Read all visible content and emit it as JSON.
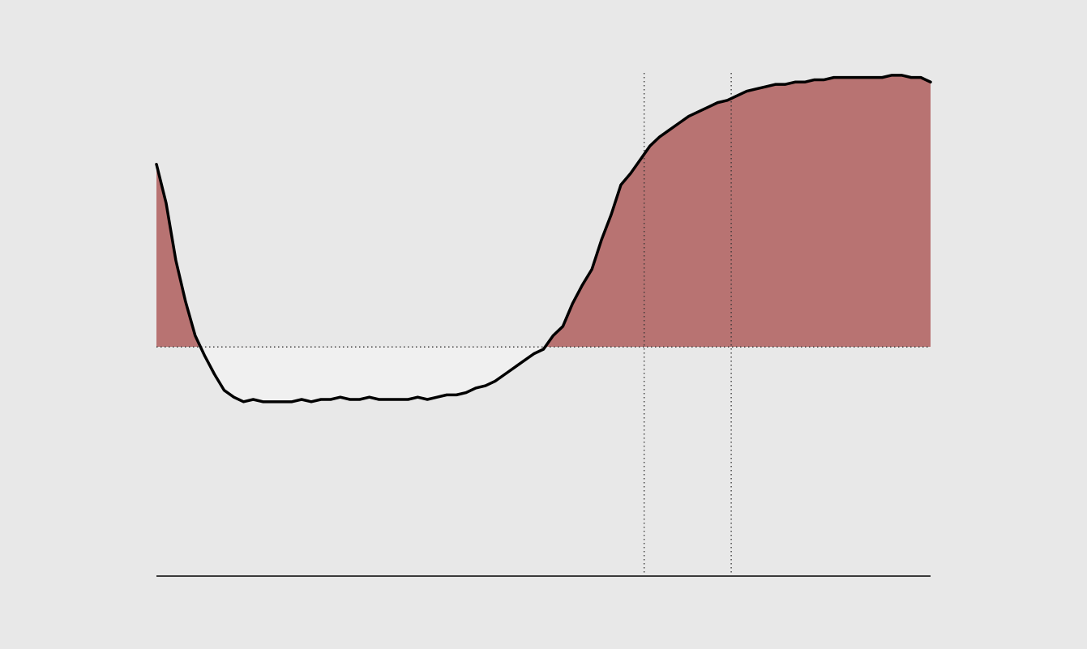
{
  "colors": {
    "background": "#e8e8e8",
    "positive_fill": "#b87372",
    "negative_fill": "#f0f0f0",
    "line": "#000000",
    "guide": "#333333"
  },
  "chart_data": {
    "type": "area",
    "title": "",
    "xlabel": "",
    "ylabel": "",
    "grid": false,
    "legend": false,
    "xlim": [
      0,
      80
    ],
    "ylim": [
      -1,
      1.2
    ],
    "baseline": 0,
    "vlines": [
      50.4,
      59.4
    ],
    "series": [
      {
        "x": [
          0,
          1,
          2,
          3,
          4,
          5,
          6,
          7,
          8,
          9,
          10,
          11,
          12,
          13,
          14,
          15,
          16,
          17,
          18,
          19,
          20,
          21,
          22,
          23,
          24,
          25,
          26,
          27,
          28,
          29,
          30,
          31,
          32,
          33,
          34,
          35,
          36,
          37,
          38,
          39,
          40,
          41,
          42,
          43,
          44,
          45,
          46,
          47,
          48,
          49,
          50,
          51,
          52,
          53,
          54,
          55,
          56,
          57,
          58,
          59,
          60,
          61,
          62,
          63,
          64,
          65,
          66,
          67,
          68,
          69,
          70,
          71,
          72,
          73,
          74,
          75,
          76,
          77,
          78,
          79,
          80
        ],
        "values": [
          0.8,
          0.63,
          0.38,
          0.2,
          0.05,
          -0.04,
          -0.12,
          -0.19,
          -0.22,
          -0.24,
          -0.23,
          -0.24,
          -0.24,
          -0.24,
          -0.24,
          -0.23,
          -0.24,
          -0.23,
          -0.23,
          -0.22,
          -0.23,
          -0.23,
          -0.22,
          -0.23,
          -0.23,
          -0.23,
          -0.23,
          -0.22,
          -0.23,
          -0.22,
          -0.21,
          -0.21,
          -0.2,
          -0.18,
          -0.17,
          -0.15,
          -0.12,
          -0.09,
          -0.06,
          -0.03,
          -0.01,
          0.05,
          0.09,
          0.19,
          0.27,
          0.34,
          0.47,
          0.58,
          0.71,
          0.76,
          0.82,
          0.88,
          0.92,
          0.95,
          0.98,
          1.01,
          1.03,
          1.05,
          1.07,
          1.08,
          1.1,
          1.12,
          1.13,
          1.14,
          1.15,
          1.15,
          1.16,
          1.16,
          1.17,
          1.17,
          1.18,
          1.18,
          1.18,
          1.18,
          1.18,
          1.18,
          1.19,
          1.19,
          1.18,
          1.18,
          1.16
        ]
      }
    ]
  }
}
